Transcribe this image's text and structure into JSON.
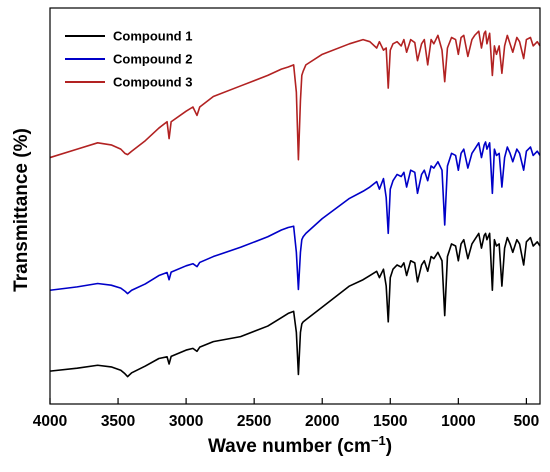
{
  "chart_data": {
    "type": "line",
    "title": "",
    "xlabel": "Wave number (cm",
    "xlabel_sup": "−1",
    "xlabel_close": ")",
    "ylabel": "Transmittance (%)",
    "x_reversed": true,
    "xlim": [
      4000,
      400
    ],
    "xticks": [
      4000,
      3500,
      3000,
      2500,
      2000,
      1500,
      1000,
      500
    ],
    "yticks_shown": false,
    "grid": false,
    "legend_position": "top-left",
    "colors": {
      "Compound 1": "#000000",
      "Compound 2": "#0000c8",
      "Compound 3": "#b22222"
    },
    "series": [
      {
        "name": "Compound 1",
        "color": "#000000",
        "x": [
          4000,
          3800,
          3650,
          3550,
          3480,
          3450,
          3430,
          3400,
          3300,
          3200,
          3140,
          3125,
          3110,
          3000,
          2950,
          2920,
          2900,
          2800,
          2600,
          2400,
          2300,
          2250,
          2210,
          2190,
          2175,
          2160,
          2150,
          2140,
          2120,
          2000,
          1800,
          1700,
          1650,
          1600,
          1580,
          1550,
          1530,
          1515,
          1500,
          1480,
          1450,
          1420,
          1400,
          1380,
          1350,
          1320,
          1300,
          1270,
          1250,
          1225,
          1200,
          1180,
          1150,
          1120,
          1100,
          1080,
          1050,
          1020,
          1000,
          980,
          960,
          930,
          900,
          880,
          850,
          830,
          810,
          800,
          790,
          770,
          750,
          735,
          720,
          700,
          680,
          660,
          640,
          620,
          600,
          570,
          550,
          520,
          500,
          470,
          450,
          420,
          400
        ],
        "y": [
          -4.2,
          -3.5,
          -2.8,
          -3.2,
          -4.0,
          -4.8,
          -5.5,
          -4.6,
          -3.0,
          -1.2,
          -0.8,
          -2.5,
          -0.7,
          0.8,
          1.2,
          0.5,
          1.5,
          2.8,
          4.0,
          6.5,
          8.5,
          9.5,
          10.0,
          5.0,
          -5.0,
          5.0,
          7.0,
          7.5,
          8.0,
          11.0,
          16.0,
          17.5,
          18.5,
          19.5,
          18.0,
          20.0,
          16.0,
          7.5,
          18.0,
          20.0,
          21.0,
          20.5,
          21.5,
          18.5,
          22.0,
          21.5,
          17.0,
          21.0,
          22.0,
          19.5,
          23.0,
          22.5,
          24.0,
          22.0,
          9.0,
          23.0,
          26.0,
          25.5,
          22.0,
          26.0,
          27.0,
          22.5,
          26.0,
          27.0,
          28.5,
          25.0,
          28.0,
          28.5,
          27.0,
          28.5,
          15.0,
          27.0,
          25.5,
          26.0,
          16.0,
          25.0,
          27.5,
          26.0,
          24.0,
          27.0,
          26.0,
          21.0,
          26.5,
          27.5,
          25.5,
          26.5,
          25.5
        ]
      },
      {
        "name": "Compound 2",
        "color": "#0000c8",
        "x": [
          4000,
          3800,
          3650,
          3550,
          3480,
          3450,
          3430,
          3400,
          3300,
          3200,
          3140,
          3125,
          3110,
          3000,
          2950,
          2920,
          2900,
          2800,
          2600,
          2400,
          2300,
          2250,
          2210,
          2190,
          2175,
          2160,
          2150,
          2140,
          2120,
          2000,
          1800,
          1700,
          1650,
          1600,
          1580,
          1550,
          1530,
          1515,
          1500,
          1480,
          1450,
          1420,
          1400,
          1380,
          1350,
          1320,
          1300,
          1270,
          1250,
          1225,
          1200,
          1180,
          1150,
          1120,
          1100,
          1080,
          1050,
          1020,
          1000,
          980,
          960,
          930,
          900,
          880,
          850,
          830,
          810,
          800,
          790,
          770,
          750,
          735,
          720,
          700,
          680,
          660,
          640,
          620,
          600,
          570,
          550,
          520,
          500,
          470,
          450,
          420,
          400
        ],
        "y": [
          15.0,
          15.8,
          16.6,
          16.2,
          15.5,
          14.8,
          14.2,
          15.0,
          16.5,
          18.5,
          19.2,
          17.5,
          19.3,
          20.8,
          21.3,
          20.6,
          21.6,
          23.0,
          25.2,
          27.7,
          29.3,
          29.9,
          30.2,
          24.0,
          15.2,
          24.0,
          27.0,
          27.7,
          28.5,
          32.0,
          36.8,
          38.5,
          39.5,
          40.8,
          39.0,
          41.5,
          37.0,
          28.5,
          39.0,
          41.0,
          42.5,
          42.0,
          43.0,
          39.5,
          43.5,
          43.0,
          38.0,
          42.5,
          43.5,
          41.0,
          44.5,
          44.0,
          45.5,
          43.5,
          30.5,
          44.5,
          47.5,
          47.0,
          43.5,
          47.5,
          48.5,
          44.0,
          47.5,
          48.5,
          50.0,
          46.5,
          49.5,
          50.2,
          48.5,
          50.0,
          38.0,
          48.5,
          47.0,
          47.5,
          39.5,
          46.5,
          49.0,
          47.5,
          45.5,
          48.5,
          47.5,
          43.5,
          48.0,
          49.0,
          47.0,
          48.0,
          47.0
        ]
      },
      {
        "name": "Compound 3",
        "color": "#b22222",
        "x": [
          4000,
          3800,
          3650,
          3550,
          3480,
          3450,
          3430,
          3400,
          3300,
          3200,
          3140,
          3125,
          3110,
          3000,
          2950,
          2920,
          2900,
          2800,
          2600,
          2400,
          2300,
          2250,
          2210,
          2190,
          2175,
          2160,
          2150,
          2140,
          2120,
          2000,
          1800,
          1700,
          1650,
          1600,
          1580,
          1550,
          1530,
          1515,
          1500,
          1480,
          1450,
          1420,
          1400,
          1380,
          1350,
          1320,
          1300,
          1270,
          1250,
          1225,
          1200,
          1180,
          1150,
          1120,
          1100,
          1080,
          1050,
          1020,
          1000,
          980,
          960,
          930,
          900,
          880,
          850,
          830,
          810,
          800,
          790,
          770,
          750,
          735,
          720,
          700,
          680,
          660,
          640,
          620,
          600,
          570,
          550,
          520,
          500,
          470,
          450,
          420,
          400
        ],
        "y": [
          46.5,
          48.5,
          50.0,
          49.5,
          48.5,
          47.5,
          47.2,
          48.0,
          50.5,
          53.5,
          55.0,
          51.0,
          55.0,
          57.5,
          58.5,
          56.5,
          58.5,
          61.0,
          63.5,
          66.0,
          67.5,
          68.0,
          68.5,
          62.0,
          46.0,
          60.0,
          66.0,
          67.0,
          68.5,
          71.0,
          73.5,
          74.5,
          74.0,
          72.5,
          74.0,
          72.0,
          72.5,
          63.0,
          72.0,
          73.5,
          74.0,
          73.0,
          74.5,
          71.5,
          74.5,
          73.8,
          69.5,
          73.5,
          74.5,
          68.5,
          74.5,
          73.5,
          75.5,
          72.0,
          64.5,
          72.5,
          75.0,
          74.5,
          71.0,
          75.0,
          75.5,
          70.5,
          74.5,
          75.5,
          76.5,
          72.5,
          76.0,
          76.5,
          73.5,
          76.0,
          66.0,
          73.0,
          71.0,
          73.0,
          66.5,
          73.0,
          75.5,
          73.5,
          71.5,
          75.0,
          74.0,
          70.0,
          74.5,
          75.0,
          73.0,
          74.0,
          73.0
        ]
      }
    ],
    "ylim": [
      -12,
      82
    ]
  }
}
